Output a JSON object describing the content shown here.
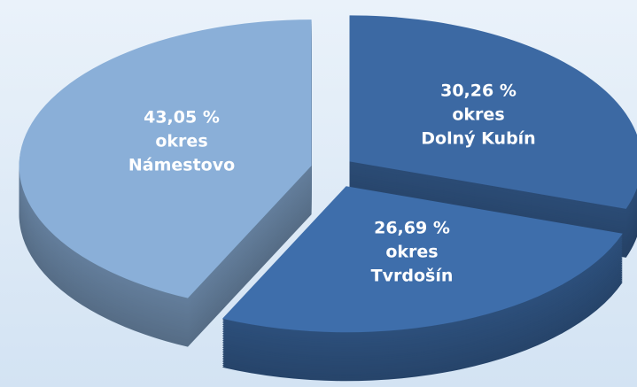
{
  "chart_data": {
    "type": "pie",
    "categories": [
      "okres\nNámestovo",
      "okres\nDolný Kubín",
      "okres\nTvrdošín"
    ],
    "values": [
      43.05,
      30.26,
      26.69
    ],
    "value_labels": [
      "43,05 %",
      "30,26 %",
      "26,69 %"
    ],
    "colors": [
      "#8aafd8",
      "#3c69a3",
      "#3e6eab"
    ]
  }
}
